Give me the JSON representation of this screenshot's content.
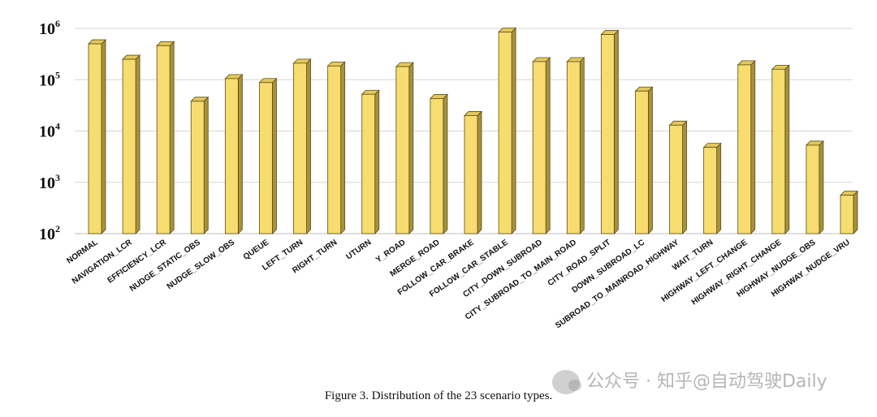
{
  "chart_data": {
    "type": "bar",
    "title": "",
    "xlabel": "",
    "ylabel": "",
    "yscale": "log",
    "ylim": [
      100,
      1000000
    ],
    "ytick_labels": [
      {
        "value": 100,
        "base": "10",
        "exp": "2"
      },
      {
        "value": 1000,
        "base": "10",
        "exp": "3"
      },
      {
        "value": 10000,
        "base": "10",
        "exp": "4"
      },
      {
        "value": 100000,
        "base": "10",
        "exp": "5"
      },
      {
        "value": 1000000,
        "base": "10",
        "exp": "6"
      }
    ],
    "grid": true,
    "style": "3d-bar",
    "bar_color": "#f7dc6f",
    "categories": [
      "NORMAL",
      "NAVIGATION_LCR",
      "EFFICIENCY_LCR",
      "NUDGE_STATIC_OBS",
      "NUDGE_SLOW_OBS",
      "QUEUE",
      "LEFT_TURN",
      "RIGHT_TURN",
      "UTURN",
      "Y_ROAD",
      "MERGE_ROAD",
      "FOLLOW_CAR_BRAKE",
      "FOLLOW_CAR_STABLE",
      "CITY_DOWN_SUBROAD",
      "CITY_SUBROAD_TO_MAIN_ROAD",
      "CITY_ROAD_SPLIT",
      "DOWN_SUBROAD_LC",
      "SUBROAD_TO_MAINROAD_HIGHWAY",
      "WAIT_TURN",
      "HIGHWAY_LEFT_CHANGE",
      "HIGHWAY_RIGHT_CHANGE",
      "HIGHWAY_NUDGE_OBS",
      "HIGHWAY_NUDGE_VRU"
    ],
    "values": [
      500000,
      250000,
      460000,
      38000,
      105000,
      88000,
      210000,
      185000,
      52000,
      180000,
      43000,
      20000,
      850000,
      225000,
      225000,
      760000,
      60000,
      13000,
      4800,
      195000,
      160000,
      5300,
      560
    ]
  },
  "caption": "Figure 3. Distribution of the 23 scenario types.",
  "watermark": "公众号 · 知乎@自动驾驶Daily"
}
